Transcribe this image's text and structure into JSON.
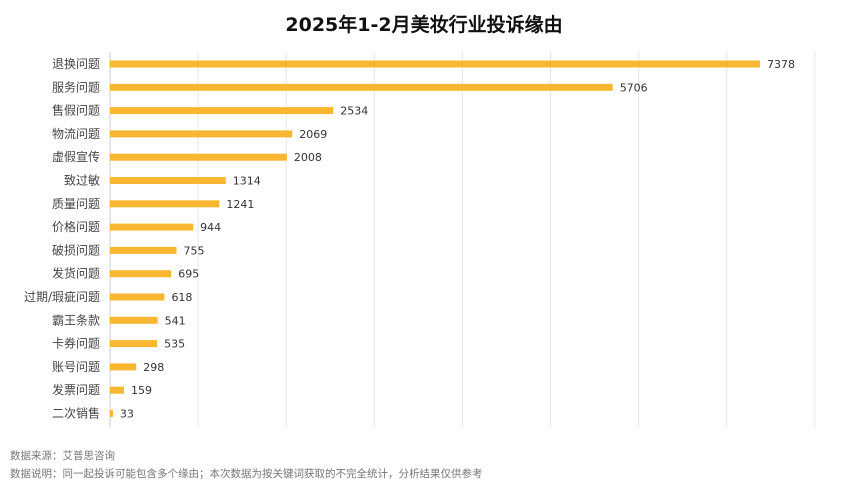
{
  "chart_data": {
    "type": "bar",
    "orientation": "horizontal",
    "title": "2025年1-2月美妆行业投诉缘由",
    "categories": [
      "退换问题",
      "服务问题",
      "售假问题",
      "物流问题",
      "虚假宣传",
      "致过敏",
      "质量问题",
      "价格问题",
      "破损问题",
      "发货问题",
      "过期/瑕疵问题",
      "霸王条款",
      "卡券问题",
      "账号问题",
      "发票问题",
      "二次销售"
    ],
    "values": [
      7378,
      5706,
      2534,
      2069,
      2008,
      1314,
      1241,
      944,
      755,
      695,
      618,
      541,
      535,
      298,
      159,
      33
    ],
    "xlim": [
      0,
      8000
    ],
    "grid": true,
    "bar_color": "#F9B731"
  },
  "footnotes": {
    "source": "数据来源：艾普思咨询",
    "note": "数据说明：同一起投诉可能包含多个缘由；本次数据为按关键词获取的不完全统计，分析结果仅供参考"
  }
}
